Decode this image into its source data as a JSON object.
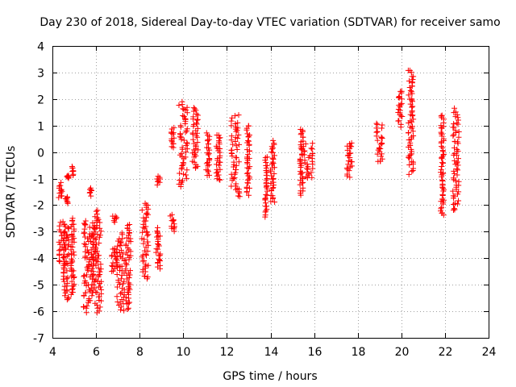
{
  "chart_data": {
    "type": "scatter",
    "title": "Day 230 of 2018, Sidereal Day-to-day VTEC variation (SDTVAR) for receiver samo",
    "xlabel": "GPS time / hours",
    "ylabel": "SDTVAR / TECUs",
    "xlim": [
      4,
      24
    ],
    "ylim": [
      -7,
      4
    ],
    "xticks": [
      "4",
      "6",
      "8",
      "10",
      "12",
      "14",
      "16",
      "18",
      "20",
      "22",
      "24"
    ],
    "yticks": [
      "-7",
      "-6",
      "-5",
      "-4",
      "-3",
      "-2",
      "-1",
      "0",
      "1",
      "2",
      "3",
      "4"
    ],
    "grid": true,
    "marker": "plus",
    "marker_color": "#ff0000",
    "clusters": [
      {
        "x": [
          4.25,
          4.45
        ],
        "y": [
          -1.7,
          -1.2
        ]
      },
      {
        "x": [
          4.3,
          4.6
        ],
        "y": [
          -4.3,
          -2.6
        ]
      },
      {
        "x": [
          4.5,
          4.75
        ],
        "y": [
          -5.6,
          -2.8
        ]
      },
      {
        "x": [
          4.6,
          4.75
        ],
        "y": [
          -1.9,
          -1.7
        ]
      },
      {
        "x": [
          4.65,
          4.75
        ],
        "y": [
          -1.0,
          -0.9
        ]
      },
      {
        "x": [
          4.85,
          5.0
        ],
        "y": [
          -5.4,
          -2.5
        ]
      },
      {
        "x": [
          4.9,
          5.0
        ],
        "y": [
          -0.9,
          -0.5
        ]
      },
      {
        "x": [
          5.4,
          5.75
        ],
        "y": [
          -6.0,
          -2.6
        ]
      },
      {
        "x": [
          5.7,
          5.8
        ],
        "y": [
          -1.6,
          -1.4
        ]
      },
      {
        "x": [
          5.75,
          5.95
        ],
        "y": [
          -5.4,
          -2.7
        ]
      },
      {
        "x": [
          5.95,
          6.25
        ],
        "y": [
          -6.0,
          -2.2
        ]
      },
      {
        "x": [
          6.7,
          7.0
        ],
        "y": [
          -4.5,
          -3.6
        ]
      },
      {
        "x": [
          6.75,
          6.95
        ],
        "y": [
          -2.6,
          -2.4
        ]
      },
      {
        "x": [
          6.95,
          7.3
        ],
        "y": [
          -6.0,
          -3.1
        ]
      },
      {
        "x": [
          7.35,
          7.6
        ],
        "y": [
          -5.9,
          -2.7
        ]
      },
      {
        "x": [
          8.1,
          8.4
        ],
        "y": [
          -4.8,
          -1.9
        ]
      },
      {
        "x": [
          8.75,
          8.95
        ],
        "y": [
          -4.4,
          -2.9
        ]
      },
      {
        "x": [
          8.8,
          8.95
        ],
        "y": [
          -1.2,
          -0.9
        ]
      },
      {
        "x": [
          9.4,
          9.6
        ],
        "y": [
          -3.0,
          -2.4
        ]
      },
      {
        "x": [
          9.45,
          9.6
        ],
        "y": [
          0.2,
          0.9
        ]
      },
      {
        "x": [
          9.8,
          10.2
        ],
        "y": [
          -1.3,
          1.9
        ]
      },
      {
        "x": [
          10.4,
          10.7
        ],
        "y": [
          -0.6,
          1.7
        ]
      },
      {
        "x": [
          11.05,
          11.2
        ],
        "y": [
          -0.9,
          0.7
        ]
      },
      {
        "x": [
          11.5,
          11.7
        ],
        "y": [
          -1.1,
          0.7
        ]
      },
      {
        "x": [
          12.2,
          12.6
        ],
        "y": [
          -1.7,
          1.4
        ]
      },
      {
        "x": [
          12.9,
          13.05
        ],
        "y": [
          -1.6,
          1.0
        ]
      },
      {
        "x": [
          13.75,
          13.85
        ],
        "y": [
          -2.4,
          -0.2
        ]
      },
      {
        "x": [
          14.0,
          14.2
        ],
        "y": [
          -1.9,
          0.4
        ]
      },
      {
        "x": [
          15.35,
          15.5
        ],
        "y": [
          -1.6,
          0.9
        ]
      },
      {
        "x": [
          15.5,
          15.95
        ],
        "y": [
          -1.0,
          0.3
        ]
      },
      {
        "x": [
          17.5,
          17.75
        ],
        "y": [
          -0.9,
          0.4
        ]
      },
      {
        "x": [
          18.85,
          19.15
        ],
        "y": [
          -0.4,
          1.1
        ]
      },
      {
        "x": [
          19.85,
          20.05
        ],
        "y": [
          1.0,
          2.3
        ]
      },
      {
        "x": [
          20.3,
          20.55
        ],
        "y": [
          -0.8,
          3.1
        ]
      },
      {
        "x": [
          21.8,
          21.95
        ],
        "y": [
          -2.4,
          1.4
        ]
      },
      {
        "x": [
          22.35,
          22.65
        ],
        "y": [
          -2.2,
          1.6
        ]
      }
    ]
  }
}
